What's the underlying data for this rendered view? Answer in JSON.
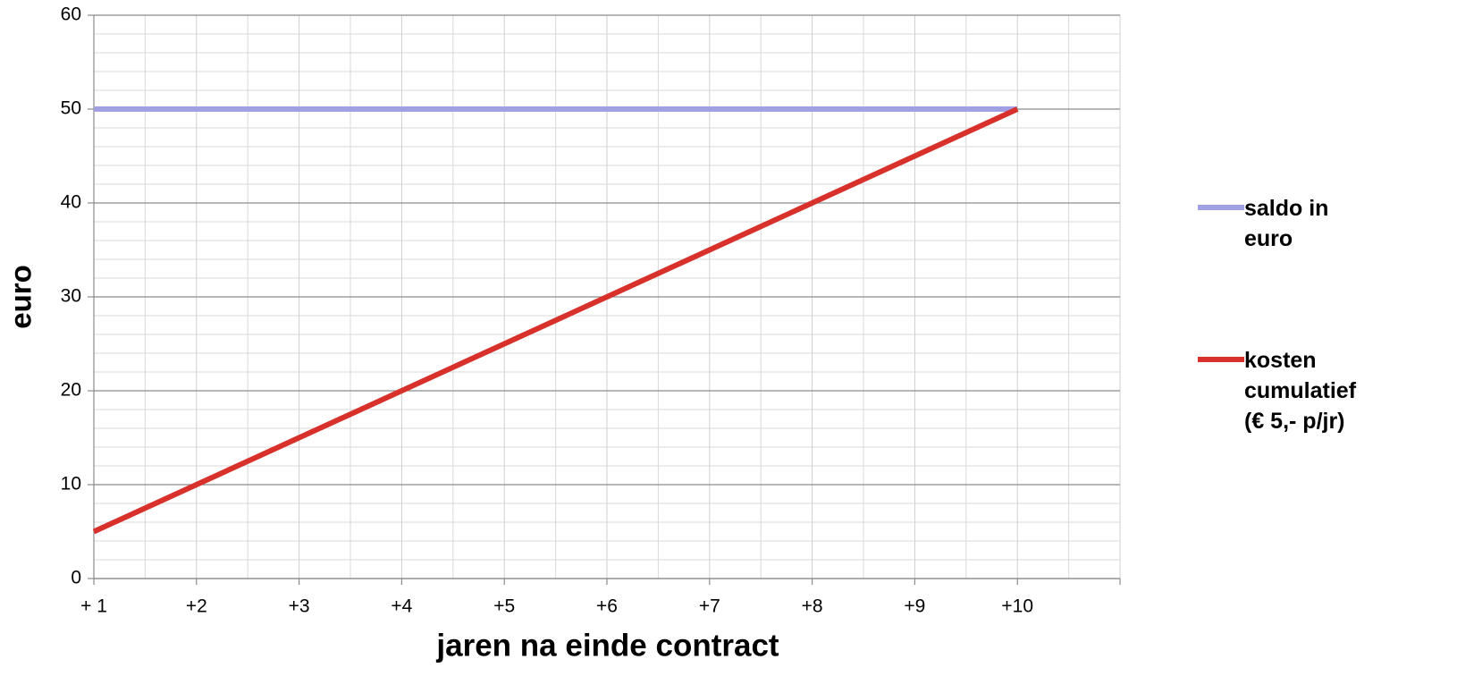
{
  "chart_data": {
    "type": "line",
    "x_label": "jaren na einde contract",
    "y_label": "euro",
    "categories": [
      "+ 1",
      "+2",
      "+3",
      "+4",
      "+5",
      "+6",
      "+7",
      "+8",
      "+9",
      "+10",
      null
    ],
    "series": [
      {
        "name": "saldo in euro",
        "color": "#a0a0e2",
        "values": [
          50,
          50,
          50,
          50,
          50,
          50,
          50,
          50,
          50,
          50,
          null
        ]
      },
      {
        "name": "kosten cumulatief (€ 5,- p/jr)",
        "color": "#d8302a",
        "values": [
          5,
          10,
          15,
          20,
          25,
          30,
          35,
          40,
          45,
          50,
          null
        ]
      }
    ],
    "ylim": [
      0,
      60
    ],
    "yticks": [
      0,
      10,
      20,
      30,
      40,
      50,
      60
    ],
    "grid": true,
    "legend": "right"
  }
}
